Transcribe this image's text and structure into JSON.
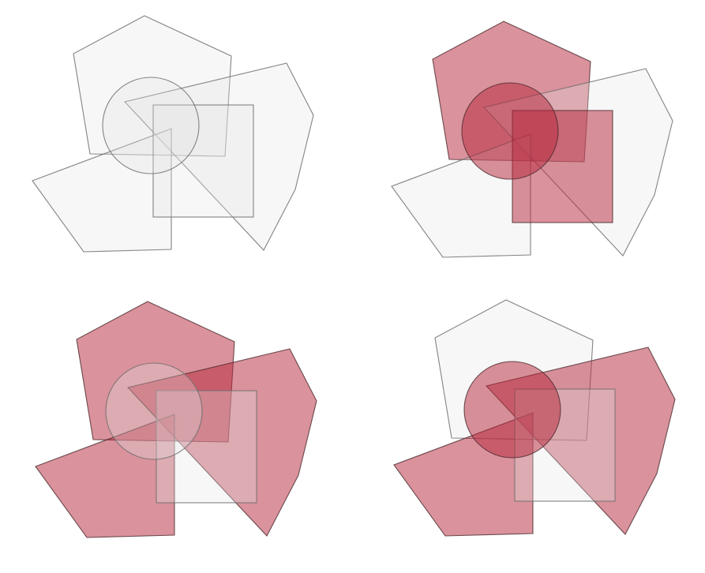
{
  "colors": {
    "highlight_fill": "#b5263a",
    "highlight_opacity": 0.5,
    "neutral_fill": "#e6e6e6",
    "neutral_opacity": 0.3,
    "stroke_dark": "#4a2a2e",
    "stroke_neutral": "#6e6e6e",
    "background": "#ffffff"
  },
  "shape_kinds": [
    "pentagon",
    "circle",
    "square",
    "triangle",
    "hexagon"
  ],
  "panels": [
    {
      "name": "panel-top-left",
      "highlighted": []
    },
    {
      "name": "panel-top-right",
      "highlighted": [
        "pentagon",
        "circle",
        "square"
      ]
    },
    {
      "name": "panel-bottom-left",
      "highlighted": [
        "pentagon",
        "triangle",
        "hexagon"
      ]
    },
    {
      "name": "panel-bottom-right",
      "highlighted": [
        "circle",
        "triangle",
        "hexagon"
      ]
    }
  ]
}
